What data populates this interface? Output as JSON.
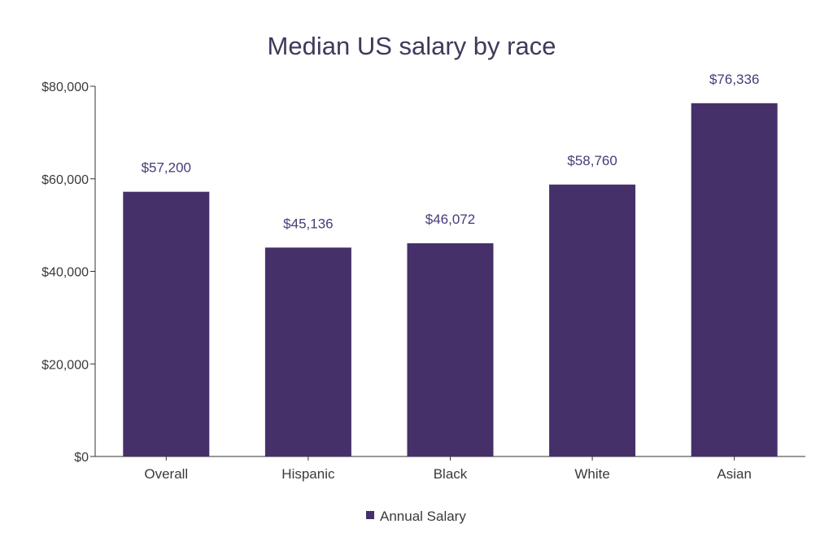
{
  "chart_data": {
    "type": "bar",
    "title": "Median US salary by race",
    "xlabel": "",
    "ylabel": "",
    "categories": [
      "Overall",
      "Hispanic",
      "Black",
      "White",
      "Asian"
    ],
    "series": [
      {
        "name": "Annual Salary",
        "values": [
          57200,
          45136,
          46072,
          58760,
          76336
        ],
        "data_labels": [
          "$57,200",
          "$45,136",
          "$46,072",
          "$58,760",
          "$76,336"
        ],
        "color": "#45306a"
      }
    ],
    "ylim": [
      0,
      80000
    ],
    "y_ticks": [
      0,
      20000,
      40000,
      60000,
      80000
    ],
    "y_tick_labels": [
      "$0",
      "$20,000",
      "$40,000",
      "$60,000",
      "$80,000"
    ],
    "grid": false,
    "legend_position": "bottom"
  }
}
